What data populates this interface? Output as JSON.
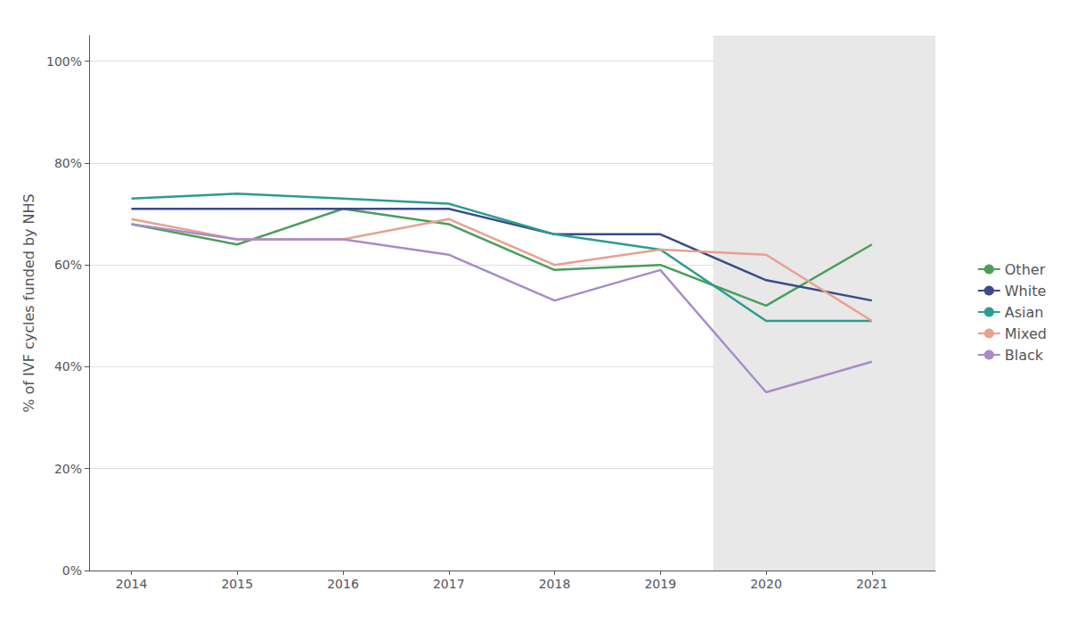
{
  "chart_data": {
    "type": "line",
    "x": [
      2014,
      2015,
      2016,
      2017,
      2018,
      2019,
      2020,
      2021
    ],
    "series": [
      {
        "name": "Other",
        "color": "#4a9e5c",
        "values": [
          0.68,
          0.64,
          0.71,
          0.68,
          0.59,
          0.6,
          0.52,
          0.64
        ]
      },
      {
        "name": "White",
        "color": "#3a4a8a",
        "values": [
          0.71,
          0.71,
          0.71,
          0.71,
          0.66,
          0.66,
          0.57,
          0.53
        ]
      },
      {
        "name": "Asian",
        "color": "#2a9d8f",
        "values": [
          0.73,
          0.74,
          0.73,
          0.72,
          0.66,
          0.63,
          0.49,
          0.49
        ]
      },
      {
        "name": "Mixed",
        "color": "#e8a090",
        "values": [
          0.69,
          0.65,
          0.65,
          0.69,
          0.6,
          0.63,
          0.62,
          0.49
        ]
      },
      {
        "name": "Black",
        "color": "#a78cc8",
        "values": [
          0.68,
          0.65,
          0.65,
          0.62,
          0.53,
          0.59,
          0.35,
          0.41
        ]
      }
    ],
    "ylabel": "% of IVF cycles funded by NHS",
    "xlim": [
      2013.6,
      2021.6
    ],
    "xticks": [
      2014,
      2015,
      2016,
      2017,
      2018,
      2019,
      2020,
      2021
    ],
    "ylim": [
      0.0,
      1.05
    ],
    "yticks": [
      {
        "value": 0.0,
        "label": "0%"
      },
      {
        "value": 0.2,
        "label": "20%"
      },
      {
        "value": 0.4,
        "label": "40%"
      },
      {
        "value": 0.6,
        "label": "60%"
      },
      {
        "value": 0.8,
        "label": "80%"
      },
      {
        "value": 1.0,
        "label": "100%"
      }
    ],
    "shaded_x": [
      2019.5,
      2021.75
    ],
    "shade_color": "#e8e8e8",
    "grid": "y",
    "legend": "right"
  }
}
